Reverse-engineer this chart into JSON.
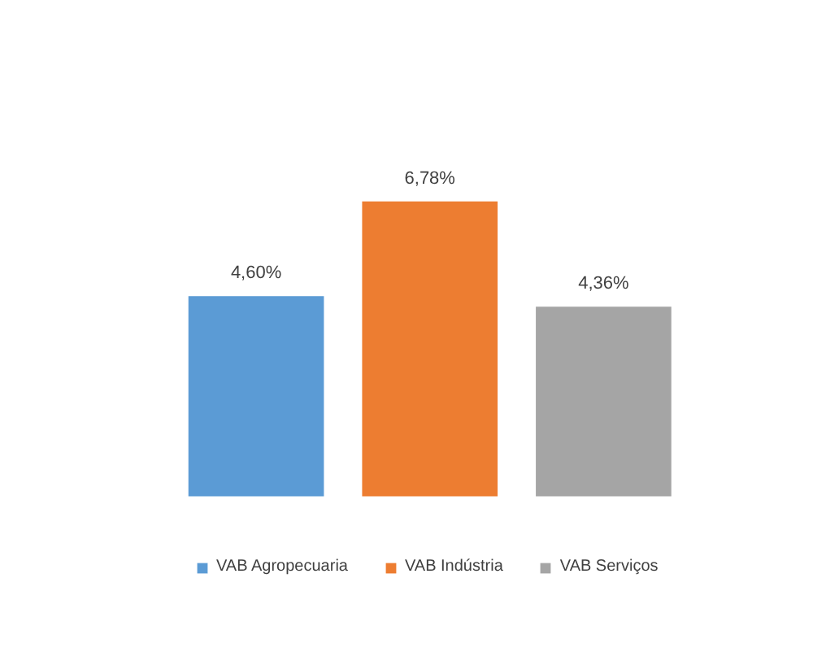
{
  "chart_data": {
    "type": "bar",
    "categories": [
      null
    ],
    "series": [
      {
        "name": "VAB Agropecuaria",
        "color": "#5b9bd5",
        "values": [
          4.6
        ],
        "value_labels": [
          "4,60%"
        ]
      },
      {
        "name": "VAB Indústria",
        "color": "#ed7d31",
        "values": [
          6.78
        ],
        "value_labels": [
          "6,78%"
        ]
      },
      {
        "name": "VAB Serviços",
        "color": "#a5a5a5",
        "values": [
          4.36
        ],
        "value_labels": [
          "4,36%"
        ]
      }
    ],
    "legend": "bottom"
  }
}
